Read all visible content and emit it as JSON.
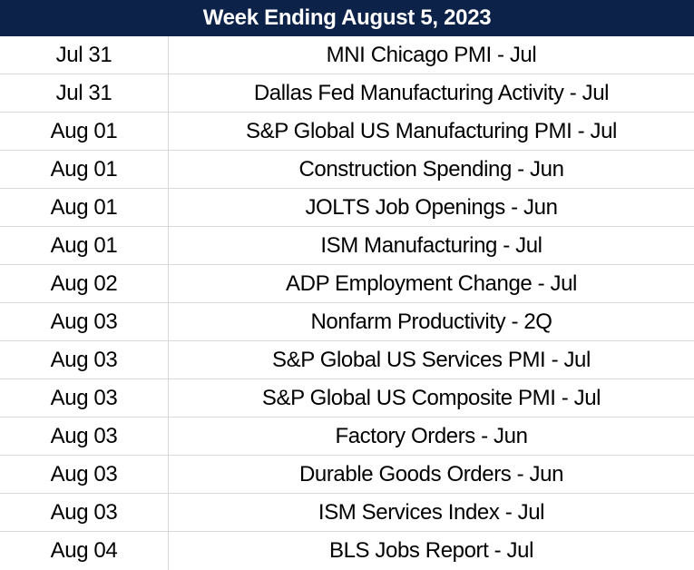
{
  "header": {
    "title": "Week Ending August 5, 2023"
  },
  "rows": [
    {
      "date": "Jul 31",
      "event": "MNI Chicago PMI - Jul"
    },
    {
      "date": "Jul 31",
      "event": "Dallas Fed Manufacturing Activity - Jul"
    },
    {
      "date": "Aug 01",
      "event": "S&P Global US Manufacturing PMI - Jul"
    },
    {
      "date": "Aug 01",
      "event": "Construction Spending - Jun"
    },
    {
      "date": "Aug 01",
      "event": "JOLTS Job Openings - Jun"
    },
    {
      "date": "Aug 01",
      "event": "ISM Manufacturing - Jul"
    },
    {
      "date": "Aug 02",
      "event": "ADP Employment Change - Jul"
    },
    {
      "date": "Aug 03",
      "event": "Nonfarm Productivity - 2Q"
    },
    {
      "date": "Aug 03",
      "event": "S&P Global US Services PMI - Jul"
    },
    {
      "date": "Aug 03",
      "event": "S&P Global US Composite PMI - Jul"
    },
    {
      "date": "Aug 03",
      "event": "Factory Orders - Jun"
    },
    {
      "date": "Aug 03",
      "event": "Durable Goods Orders - Jun"
    },
    {
      "date": "Aug 03",
      "event": "ISM Services Index - Jul"
    },
    {
      "date": "Aug 04",
      "event": "BLS Jobs Report - Jul"
    }
  ],
  "colors": {
    "header_bg": "#0c2249",
    "header_text": "#ffffff",
    "grid_line": "#d9d9d9"
  }
}
